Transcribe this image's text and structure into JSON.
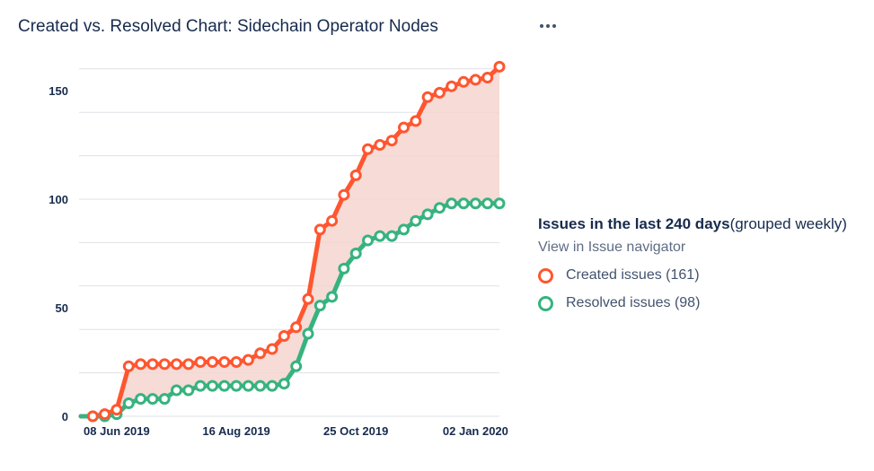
{
  "title": "Created vs. Resolved Chart: Sidechain Operator Nodes",
  "menu_icon": "more-horizontal-icon",
  "legend": {
    "heading_bold": "Issues in the last 240 days",
    "heading_rest": "(grouped weekly)",
    "link": "View in Issue navigator",
    "created_label": "Created issues (161)",
    "resolved_label": "Resolved issues (98)"
  },
  "colors": {
    "created": "#ff5630",
    "resolved": "#36b37e",
    "gap_fill": "#f5d5d0",
    "grid": "#dfe1e6"
  },
  "chart_data": {
    "type": "line",
    "title": "Created vs. Resolved Chart: Sidechain Operator Nodes",
    "xlabel": "",
    "ylabel": "",
    "x_tick_labels": [
      "08 Jun 2019",
      "16 Aug 2019",
      "25 Oct 2019",
      "02 Jan 2020"
    ],
    "y_ticks": [
      0,
      50,
      100,
      150
    ],
    "ylim": [
      0,
      160
    ],
    "grid": true,
    "legend_position": "right",
    "x_week_index_of_ticks": [
      3,
      13,
      23,
      33
    ],
    "x_week_index_range": [
      0,
      35
    ],
    "series": [
      {
        "name": "Created issues",
        "color": "#ff5630",
        "values": [
          0,
          0,
          1,
          3,
          23,
          24,
          24,
          24,
          24,
          24,
          25,
          25,
          25,
          25,
          26,
          29,
          31,
          37,
          41,
          54,
          86,
          90,
          102,
          111,
          123,
          125,
          127,
          133,
          136,
          147,
          149,
          152,
          154,
          155,
          156,
          161
        ]
      },
      {
        "name": "Resolved issues",
        "color": "#36b37e",
        "values": [
          0,
          0,
          0,
          1,
          6,
          8,
          8,
          8,
          12,
          12,
          14,
          14,
          14,
          14,
          14,
          14,
          14,
          15,
          23,
          38,
          51,
          55,
          68,
          75,
          81,
          83,
          83,
          86,
          90,
          93,
          96,
          98,
          98,
          98,
          98,
          98
        ]
      }
    ]
  }
}
